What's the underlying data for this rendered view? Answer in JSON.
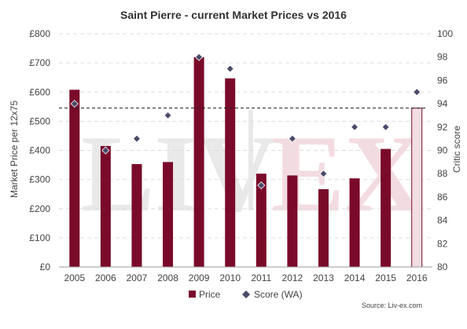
{
  "chart_data": {
    "type": "bar",
    "title": "Saint Pierre - current Market Prices vs 2016",
    "categories": [
      "2005",
      "2006",
      "2007",
      "2008",
      "2009",
      "2010",
      "2011",
      "2012",
      "2013",
      "2014",
      "2015",
      "2016"
    ],
    "series": [
      {
        "name": "Price",
        "type": "bar",
        "axis": "left",
        "values": [
          608,
          415,
          353,
          360,
          720,
          647,
          320,
          314,
          267,
          304,
          405,
          545
        ],
        "color": "#7a0a2a",
        "highlight_last_color": "#f2dde2"
      },
      {
        "name": "Score (WA)",
        "type": "scatter",
        "axis": "right",
        "values": [
          94,
          90,
          91,
          93,
          98,
          97,
          87,
          91,
          88,
          92,
          92,
          95
        ],
        "color": "#4a4a6a"
      }
    ],
    "ylabel": "Market Price per 12x75",
    "y2label": "Critic score",
    "ylim": [
      0,
      800
    ],
    "y2lim": [
      80,
      100
    ],
    "yticks": [
      "£0",
      "£100",
      "£200",
      "£300",
      "£400",
      "£500",
      "£600",
      "£700",
      "£800"
    ],
    "y2ticks": [
      "80",
      "82",
      "84",
      "86",
      "88",
      "90",
      "92",
      "94",
      "96",
      "98",
      "100"
    ],
    "reference_line": {
      "value": 545,
      "style": "dashed"
    },
    "grid": true,
    "legend_position": "bottom",
    "watermark": "LIV-EX",
    "source": "Source: Liv-ex.com"
  }
}
